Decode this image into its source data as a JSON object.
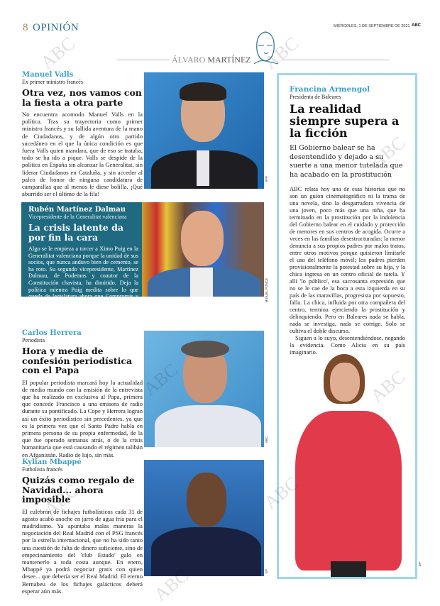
{
  "header": {
    "page_number": "8",
    "section": "OPINIÓN",
    "date": "MIÉRCOLES, 1 DE SEPTIEMBRE DE 2021",
    "brand": "ABC"
  },
  "author": {
    "first": "ÁLVARO",
    "last": "MARTÍNEZ"
  },
  "watermark": "ABC",
  "articles": [
    {
      "name": "Manuel Valls",
      "role": "Ex primer ministro francés",
      "headline": "Otra vez, nos vamos con la fiesta a otra parte",
      "body": "No encuentra acomodo Manuel Valls en la política. Tras su trayectoria como primer ministro francés y su fallida aventura de la mano de Ciudadanos, y de algún otro partido sucedáneo en el que la única condición es que fuera Valls quien mandara, que de eso se trataba, todo se ha ido a pique. Valls se despide de la política en España sin alcanzar la Generalitat, sin liderar Ciudadanos en Cataluña, y sin acceder al palco de honor de ninguna candidatura de campanillas que al menos le diese bolilla. ¡Qué aburrido ser el último de la fila!",
      "photo_credit": "AFP"
    },
    {
      "name": "Rubén Martínez Dalmau",
      "role": "Vicepresidente de la Generalitat valenciana",
      "headline": "La crisis latente da por fin la cara",
      "body": "Algo se le empieza a torcer a Ximo Puig en la Generalitat valenciana porque la unidad de sus socios, que nunca anduvo bien de cemento, se ha roto. Su segundo vicepresidente, Martínez Dalmau, de Podemos y coautor de la Constitución chavista, ha dimitido. Deja la política mientra Puig medita sobre lo que queda de legislatura ahora que Compromís y Podemos empiezan a ser un lastre para el PSOE.",
      "photo_credit": "MIGUEL PONCE"
    },
    {
      "name": "Carlos Herrera",
      "role": "Periodista",
      "headline": "Hora y media de confesión periodística con el Papa",
      "body": "El popular periodista marcará hoy la actualidad de medio mundo con la emisión de la entrevista que ha realizado en exclusiva al Papa, primera que concede Francisco a una emisora de radio durante su pontificado. La Cope y Herrera logran así un éxito periodístico sin precedentes, ya que es la primera vez que el Santo Padre habla en primera persona de su propia enfermedad, de la que fue operado semanas atrás, o de la crisis humanitaria que está causando el régimen talibán en Afganistán. Radio de lujo, sin más.",
      "photo_credit": "ABC"
    },
    {
      "name": "Kylian Mbappé",
      "role": "Futbolista francés",
      "headline": "Quizás como regalo de Navidad... ahora imposible",
      "body": "El culebrón de fichajes futbolísticos cada 31 de agosto acabó anoche en jarro de agua fría para el madridismo. Ya apuntaba malas maneras la negociación del Real Madrid con el PSG francés por la estrella internacional, que no ha sido tanto una cuestión de falta de dinero suficiente, sino de empecinamiento del 'club Estado' galo en mantenerlo a toda costa aunque. En enero, Mbappé ya podrá negociar gratis con quien desee... que debería ser el Real Madrid. El eterno Bernabeu de los fichajes galácticos deberá esperar aún más.",
      "photo_credit": "EP"
    }
  ],
  "featured": {
    "name": "Francina Armengol",
    "role": "Presidenta de Baleares",
    "headline": "La realidad siempre supera a la ficción",
    "lead": "El Gobierno balear se ha desentendido y dejado a su suerte a una menor tutelada que ha acabado en la prostitución",
    "body": "ABC relata hoy una de esas historias que no son un guion cinematográfico ni la trama de una novela, sino la desgarradora vivencia de una joven, poco más que una niña, que ha terminado en la prostitución por la indolencia del Gobierno balear en el cuidado y protección de menores en sus centros de acogida. Ocurre a veces en las familias desestructuradas: la menor denuncia a sus propios padres por malos tratos, entre otros motivos porque quisieron limitarle el uso del teléfono móvil; los padres pierden provisionalmente la potestad sobre su hija, y la chica ingresa en un centro oficial de tutela. Y allí 'lo público', esa sacrosanta expresión que no se le cae de la boca a esta izquierda en su país de las maravillas, progresista por supuesto, falla. La chica, influida por otra compañera del centro, termina ejerciendo la prostitución y delinquiendo. Pero en Baleares nada se habla, nada se investiga, nada se corrige. Solo se cultiva el doble discurso.",
    "body2": "Siguen a lo suyo, desentendiéndose, negando la evidencia. Como Alicia en su país imaginario.",
    "photo_credit": "EP"
  },
  "colors": {
    "name": "#3a9fc6",
    "section": "#2b6f8e",
    "box_border": "#9fd8ea",
    "dalmau_box": "#1f6a80"
  }
}
